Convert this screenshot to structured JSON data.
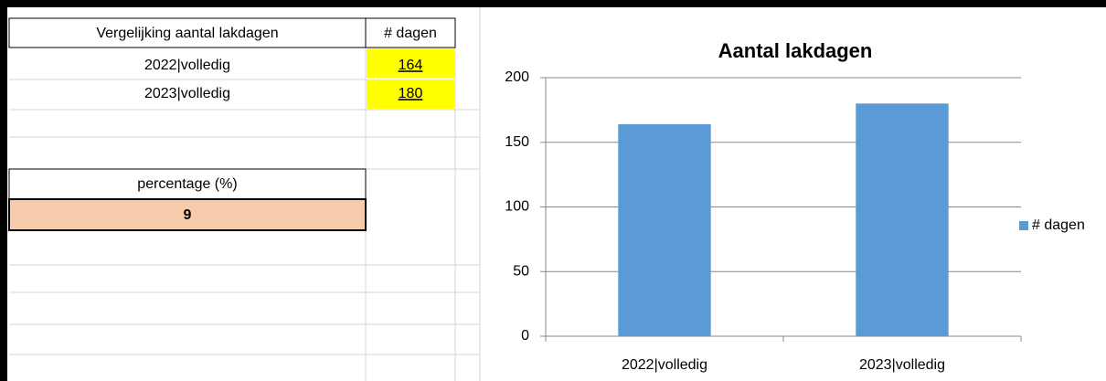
{
  "table": {
    "header": [
      "Vergelijking aantal lakdagen",
      "# dagen"
    ],
    "rows": [
      [
        "2022|volledig",
        164
      ],
      [
        "2023|volledig",
        180
      ]
    ],
    "percentage_label": "percentage (%)",
    "percentage_value": 9
  },
  "chart_data": {
    "type": "bar",
    "title": "Aantal lakdagen",
    "categories": [
      "2022|volledig",
      "2023|volledig"
    ],
    "series": [
      {
        "name": "# dagen",
        "color": "#5b9bd5",
        "values": [
          164,
          180
        ]
      }
    ],
    "ylim": [
      0,
      200
    ],
    "yticks": [
      0,
      50,
      100,
      150,
      200
    ],
    "grid": true,
    "legend": "right"
  }
}
